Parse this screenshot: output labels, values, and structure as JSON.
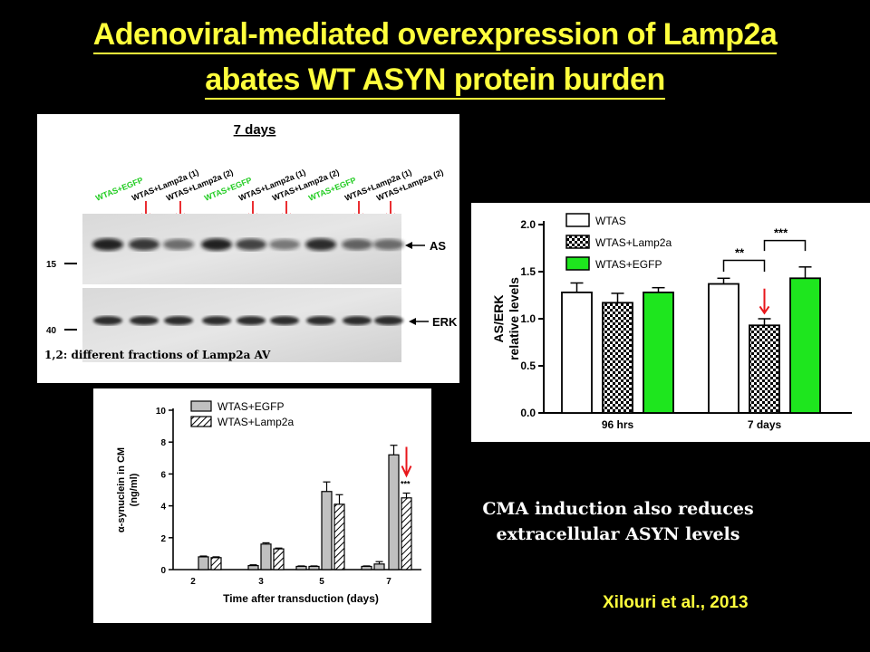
{
  "title": {
    "line1": "Adenoviral-mediated overexpression of Lamp2a",
    "line2": "abates WT ASYN protein burden"
  },
  "blot": {
    "heading": "7 days",
    "lanes": [
      "WTAS+EGFP",
      "WTAS+Lamp2a (1)",
      "WTAS+Lamp2a (2)",
      "WTAS+EGFP",
      "WTAS+Lamp2a (1)",
      "WTAS+Lamp2a (2)",
      "WTAS+EGFP",
      "WTAS+Lamp2a (1)",
      "WTAS+Lamp2a (2)"
    ],
    "lane_colors": [
      "#22cc22",
      "#000000",
      "#000000",
      "#22cc22",
      "#000000",
      "#000000",
      "#22cc22",
      "#000000",
      "#000000"
    ],
    "mw_markers": [
      "15",
      "40"
    ],
    "band_labels": [
      "AS",
      "ERK"
    ],
    "footnote": "1,2: different fractions of Lamp2a AV",
    "arrow_color": "#e8161b"
  },
  "chart_data": [
    {
      "type": "bar",
      "categories": [
        "96 hrs",
        "7 days"
      ],
      "series": [
        {
          "name": "WTAS",
          "values": [
            1.28,
            1.37
          ],
          "errors": [
            0.1,
            0.06
          ],
          "color": "#ffffff",
          "pattern": "none"
        },
        {
          "name": "WTAS+Lamp2a",
          "values": [
            1.17,
            0.93
          ],
          "errors": [
            0.1,
            0.07
          ],
          "color": "#ffffff",
          "pattern": "checker"
        },
        {
          "name": "WTAS+EGFP",
          "values": [
            1.28,
            1.43
          ],
          "errors": [
            0.05,
            0.12
          ],
          "color": "#1ee61e",
          "pattern": "none"
        }
      ],
      "ylabel": [
        "AS/ERK",
        "relative levels"
      ],
      "ylim": [
        0,
        2.0
      ],
      "yticks": [
        "0.0",
        "0.5",
        "1.0",
        "1.5",
        "2.0"
      ],
      "annotations": [
        "**",
        "***"
      ],
      "legend_position": "top-left"
    },
    {
      "type": "bar",
      "categories": [
        "2",
        "3",
        "5",
        "7"
      ],
      "series": [
        {
          "name": "WTAS+EGFP",
          "values": [
            0.8,
            1.6,
            4.9,
            7.2
          ],
          "errors": [
            0.05,
            0.08,
            0.6,
            0.6
          ],
          "color": "#c0c0c0",
          "pattern": "none"
        },
        {
          "name": "WTAS+Lamp2a",
          "values": [
            0.75,
            1.3,
            4.1,
            4.5
          ],
          "errors": [
            0.05,
            0.05,
            0.6,
            0.3
          ],
          "color": "#ffffff",
          "pattern": "hatch"
        }
      ],
      "extra_bars": [
        {
          "category": "3",
          "value": 0.25,
          "error": 0.05
        },
        {
          "category": "5",
          "value": 0.2,
          "error": 0.03
        },
        {
          "category": "5",
          "value": 0.2,
          "error": 0.03
        },
        {
          "category": "7",
          "value": 0.2,
          "error": 0.03
        },
        {
          "category": "7",
          "value": 0.35,
          "error": 0.15
        }
      ],
      "xlabel": "Time after transduction (days)",
      "ylabel": [
        "α-synuclein in CM",
        "(ng/ml)"
      ],
      "ylim": [
        0,
        10
      ],
      "yticks": [
        "0",
        "2",
        "4",
        "6",
        "8",
        "10"
      ],
      "annotations": [
        "***"
      ],
      "legend_position": "top-left"
    }
  ],
  "caption": {
    "line1": "CMA induction also reduces",
    "line2": "extracellular ASYN levels"
  },
  "citation": "Xilouri et al., 2013"
}
